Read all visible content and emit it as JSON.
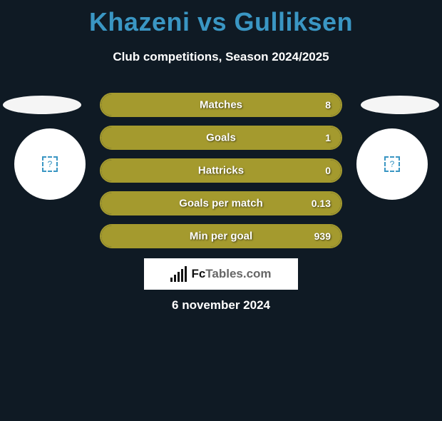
{
  "title": "Khazeni vs Gulliksen",
  "subtitle": "Club competitions, Season 2024/2025",
  "date": "6 november 2024",
  "logo": {
    "brand": "Fc",
    "rest": "Tables.com"
  },
  "avatar_placeholder": "?",
  "colors": {
    "background": "#0f1a24",
    "title": "#3a96c3",
    "bar_border_right": "#a49a2e",
    "bar_fill_right": "#a49a2e",
    "bar_border_left": "#7aa43c",
    "text": "#ffffff"
  },
  "stats": [
    {
      "label": "Matches",
      "left_value": "",
      "right_value": "8",
      "fill_side": "right",
      "fill_pct": 100
    },
    {
      "label": "Goals",
      "left_value": "",
      "right_value": "1",
      "fill_side": "right",
      "fill_pct": 100
    },
    {
      "label": "Hattricks",
      "left_value": "",
      "right_value": "0",
      "fill_side": "right",
      "fill_pct": 100
    },
    {
      "label": "Goals per match",
      "left_value": "",
      "right_value": "0.13",
      "fill_side": "right",
      "fill_pct": 100
    },
    {
      "label": "Min per goal",
      "left_value": "",
      "right_value": "939",
      "fill_side": "right",
      "fill_pct": 100
    }
  ]
}
